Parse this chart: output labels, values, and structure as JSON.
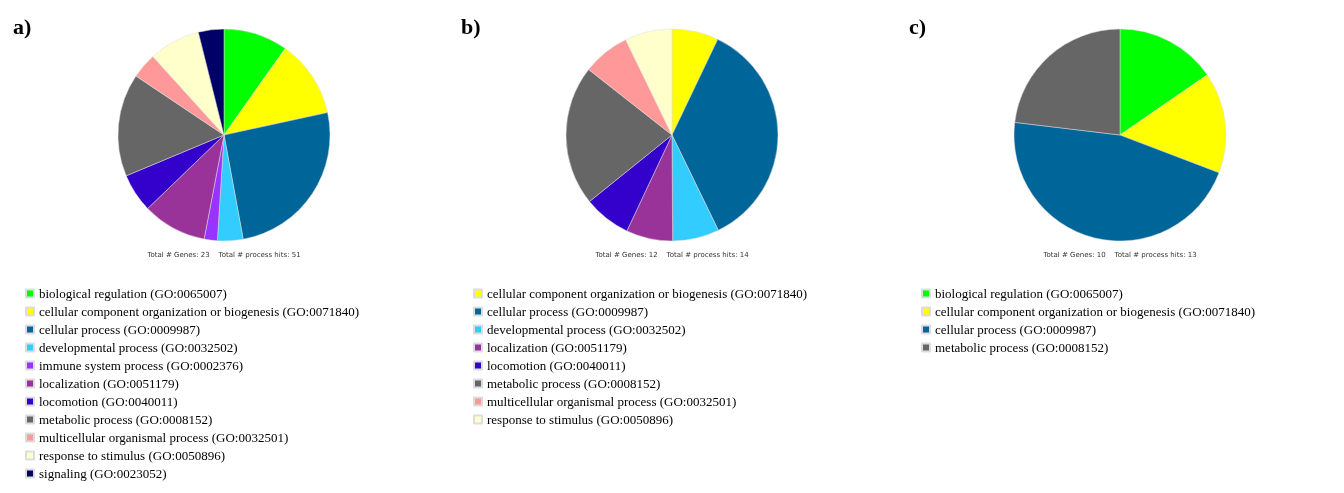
{
  "chart_data": [
    {
      "type": "pie",
      "title": "a)",
      "subtitle": "Total # Genes: 23    Total # process hits: 51",
      "legend": "bottom left",
      "categories": [
        "biological regulation (GO:0065007)",
        "cellular component organization or biogenesis (GO:0071840)",
        "cellular process (GO:0009987)",
        "developmental process (GO:0032502)",
        "immune system process (GO:0002376)",
        "localization (GO:0051179)",
        "locomotion (GO:0040011)",
        "metabolic process (GO:0008152)",
        "multicellular organismal process (GO:0032501)",
        "response to stimulus (GO:0050896)",
        "signaling (GO:0023052)"
      ],
      "values": [
        9.8,
        11.8,
        25.5,
        3.9,
        2.0,
        9.8,
        5.9,
        15.7,
        3.9,
        7.8,
        3.9
      ],
      "colors": [
        "#00ff00",
        "#ffff00",
        "#006699",
        "#33ccff",
        "#9933ff",
        "#993399",
        "#3300cc",
        "#666666",
        "#ff9999",
        "#ffffcc",
        "#000066"
      ]
    },
    {
      "type": "pie",
      "title": "b)",
      "subtitle": "Total # Genes: 12    Total # process hits: 14",
      "legend": "bottom left",
      "categories": [
        "cellular component organization or biogenesis (GO:0071840)",
        "cellular process (GO:0009987)",
        "developmental process (GO:0032502)",
        "localization (GO:0051179)",
        "locomotion (GO:0040011)",
        "metabolic process (GO:0008152)",
        "multicellular organismal process (GO:0032501)",
        "response to stimulus (GO:0050896)"
      ],
      "values": [
        7.1,
        35.7,
        7.1,
        7.1,
        7.2,
        21.4,
        7.2,
        7.2
      ],
      "colors": [
        "#ffff00",
        "#006699",
        "#33ccff",
        "#993399",
        "#3300cc",
        "#666666",
        "#ff9999",
        "#ffffcc"
      ]
    },
    {
      "type": "pie",
      "title": "c)",
      "subtitle": "Total # Genes: 10    Total # process hits: 13",
      "legend": "bottom left",
      "categories": [
        "biological regulation (GO:0065007)",
        "cellular component organization or biogenesis (GO:0071840)",
        "cellular process (GO:0009987)",
        "metabolic process (GO:0008152)"
      ],
      "values": [
        15.4,
        15.4,
        46.1,
        23.1
      ],
      "colors": [
        "#00ff00",
        "#ffff00",
        "#006699",
        "#666666"
      ]
    }
  ]
}
